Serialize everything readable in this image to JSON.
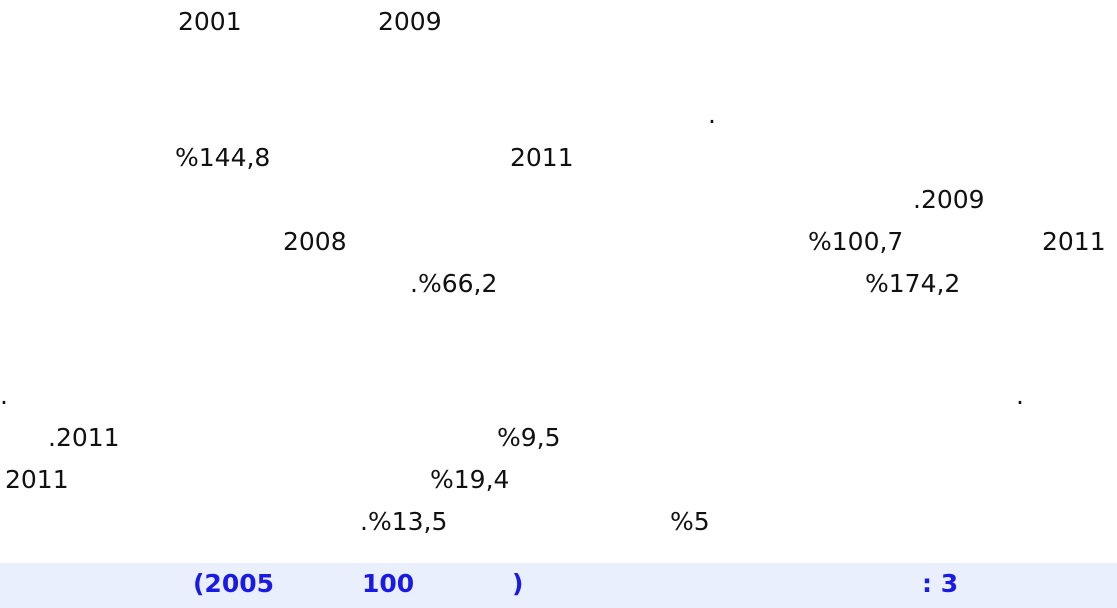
{
  "lines": [
    [
      "2001",
      "2009"
    ],
    [
      "."
    ],
    [
      "%144,8",
      "2011"
    ],
    [
      ".2009"
    ],
    [
      "2008",
      "%100,7",
      "2011"
    ],
    [
      ".%66,2",
      "%174,2"
    ],
    [
      ".",
      "."
    ],
    [
      ".2011",
      "%9,5"
    ],
    [
      "2011",
      "%19,4"
    ],
    [
      ".%13,5",
      "%5"
    ]
  ],
  "caption": [
    "(2005",
    "100",
    ")",
    ": 3"
  ]
}
